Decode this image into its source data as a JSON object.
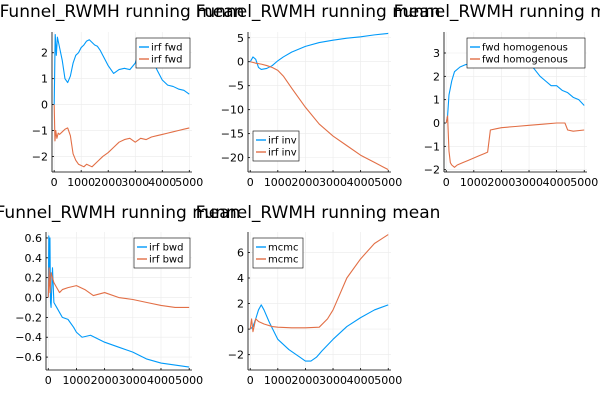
{
  "colors": {
    "series1": "#009AFA",
    "series2": "#E26F46",
    "grid": "#EBEBEB",
    "axis": "#000000"
  },
  "chart_data": [
    {
      "type": "line",
      "title": "Funnel_RWMH running mean",
      "xlabel": "",
      "ylabel": "",
      "xlim": [
        -80,
        5100
      ],
      "ylim": [
        -2.6,
        2.8
      ],
      "xticks": [
        0,
        1000,
        2000,
        3000,
        4000,
        5000
      ],
      "xtick_labels": [
        "0",
        "1000",
        "2000",
        "3000",
        "4000",
        "5000"
      ],
      "yticks": [
        -2,
        -1,
        0,
        1,
        2
      ],
      "ytick_labels": [
        "−2",
        "−1",
        "0",
        "1",
        "2"
      ],
      "grid": true,
      "legend_position": "top-right",
      "series": [
        {
          "name": "irf fwd",
          "color_key": "series1",
          "x": [
            1,
            40,
            80,
            120,
            200,
            300,
            400,
            500,
            600,
            700,
            800,
            900,
            1000,
            1100,
            1200,
            1300,
            1400,
            1500,
            1600,
            1700,
            1800,
            1900,
            2000,
            2200,
            2400,
            2600,
            2800,
            3000,
            3100,
            3200,
            3400,
            3600,
            3700,
            3800,
            4000,
            4200,
            4400,
            4600,
            4800,
            5000
          ],
          "y": [
            0,
            2.7,
            1.9,
            2.6,
            2.2,
            1.7,
            1.0,
            0.85,
            1.1,
            1.6,
            1.9,
            2.0,
            2.2,
            2.3,
            2.45,
            2.5,
            2.4,
            2.3,
            2.25,
            2.1,
            1.9,
            1.7,
            1.5,
            1.2,
            1.35,
            1.4,
            1.35,
            1.6,
            1.9,
            1.8,
            1.8,
            1.7,
            1.6,
            1.35,
            0.95,
            0.75,
            0.7,
            0.6,
            0.55,
            0.4
          ]
        },
        {
          "name": "irf fwd",
          "color_key": "series2",
          "x": [
            1,
            30,
            60,
            100,
            150,
            200,
            300,
            400,
            500,
            600,
            700,
            800,
            900,
            1000,
            1100,
            1200,
            1400,
            1600,
            1800,
            2000,
            2200,
            2400,
            2600,
            2800,
            3000,
            3200,
            3400,
            3600,
            3800,
            4000,
            4200,
            4400,
            4600,
            4800,
            5000
          ],
          "y": [
            0,
            -1.4,
            -1.0,
            -1.3,
            -1.1,
            -1.15,
            -1.05,
            -0.95,
            -0.9,
            -1.2,
            -1.9,
            -2.15,
            -2.3,
            -2.35,
            -2.4,
            -2.3,
            -2.4,
            -2.2,
            -2.0,
            -1.85,
            -1.65,
            -1.45,
            -1.35,
            -1.3,
            -1.45,
            -1.3,
            -1.35,
            -1.25,
            -1.2,
            -1.15,
            -1.1,
            -1.05,
            -1.0,
            -0.95,
            -0.9
          ]
        }
      ]
    },
    {
      "type": "line",
      "title": "Funnel_RWMH running mean",
      "xlabel": "",
      "ylabel": "",
      "xlim": [
        -80,
        5100
      ],
      "ylim": [
        -23,
        6.2
      ],
      "xticks": [
        0,
        1000,
        2000,
        3000,
        4000,
        5000
      ],
      "xtick_labels": [
        "0",
        "1000",
        "2000",
        "3000",
        "4000",
        "5000"
      ],
      "yticks": [
        -20,
        -15,
        -10,
        -5,
        0,
        5
      ],
      "ytick_labels": [
        "−20",
        "−15",
        "−10",
        "−5",
        "0",
        "5"
      ],
      "grid": true,
      "legend_position": "bottom-left",
      "series": [
        {
          "name": "irf inv",
          "color_key": "series1",
          "x": [
            1,
            100,
            200,
            300,
            400,
            600,
            800,
            1000,
            1200,
            1500,
            2000,
            2500,
            3000,
            3500,
            4000,
            4500,
            5000
          ],
          "y": [
            0,
            1.0,
            0.5,
            -1.2,
            -1.6,
            -1.4,
            -0.8,
            0.2,
            1.0,
            2.0,
            3.2,
            4.0,
            4.5,
            4.9,
            5.2,
            5.6,
            5.9
          ]
        },
        {
          "name": "irf inv",
          "color_key": "series2",
          "x": [
            1,
            200,
            400,
            600,
            800,
            1000,
            1200,
            1500,
            2000,
            2500,
            3000,
            3500,
            4000,
            4500,
            5000
          ],
          "y": [
            0,
            -0.3,
            -0.5,
            -0.8,
            -1.2,
            -1.8,
            -3.0,
            -5.5,
            -9.5,
            -13.0,
            -15.5,
            -17.5,
            -19.5,
            -21.0,
            -22.5
          ]
        }
      ]
    },
    {
      "type": "line",
      "title": "Funnel_RWMH running mean",
      "xlabel": "",
      "ylabel": "",
      "xlim": [
        -80,
        5100
      ],
      "ylim": [
        -2.1,
        3.9
      ],
      "xticks": [
        0,
        1000,
        2000,
        3000,
        4000,
        5000
      ],
      "xtick_labels": [
        "0",
        "1000",
        "2000",
        "3000",
        "4000",
        "5000"
      ],
      "yticks": [
        -2,
        -1,
        0,
        1,
        2,
        3
      ],
      "ytick_labels": [
        "−2",
        "−1",
        "0",
        "1",
        "2",
        "3"
      ],
      "grid": true,
      "legend_position": "top-right",
      "series": [
        {
          "name": "fwd homogenous",
          "color_key": "series1",
          "x": [
            1,
            50,
            100,
            200,
            300,
            500,
            700,
            900,
            1000,
            1200,
            1400,
            1600,
            1800,
            2000,
            2200,
            2400,
            2600,
            2800,
            3000,
            3200,
            3400,
            3600,
            3800,
            4000,
            4200,
            4400,
            4600,
            4800,
            5000
          ],
          "y": [
            0,
            0.3,
            1.2,
            1.8,
            2.2,
            2.4,
            2.5,
            2.55,
            2.7,
            3.2,
            3.3,
            3.25,
            3.2,
            3.0,
            3.1,
            3.3,
            3.6,
            3.55,
            2.6,
            2.3,
            2.0,
            1.8,
            1.6,
            1.6,
            1.4,
            1.3,
            1.1,
            1.0,
            0.75
          ]
        },
        {
          "name": "fwd homogenous",
          "color_key": "series2",
          "x": [
            1,
            50,
            100,
            150,
            200,
            300,
            400,
            600,
            800,
            1000,
            1200,
            1400,
            1500,
            1600,
            1800,
            2000,
            2500,
            3000,
            3500,
            4000,
            4300,
            4400,
            4600,
            5000
          ],
          "y": [
            0,
            0.3,
            -1.2,
            -1.7,
            -1.8,
            -1.9,
            -1.8,
            -1.7,
            -1.6,
            -1.5,
            -1.4,
            -1.3,
            -1.25,
            -0.3,
            -0.25,
            -0.2,
            -0.15,
            -0.1,
            -0.05,
            0.0,
            0.0,
            -0.3,
            -0.35,
            -0.3
          ]
        }
      ]
    },
    {
      "type": "line",
      "title": "Funnel_RWMH running mean",
      "xlabel": "",
      "ylabel": "",
      "xlim": [
        -80,
        5100
      ],
      "ylim": [
        -0.73,
        0.66
      ],
      "xticks": [
        0,
        1000,
        2000,
        3000,
        4000,
        5000
      ],
      "xtick_labels": [
        "0",
        "1000",
        "2000",
        "3000",
        "4000",
        "5000"
      ],
      "yticks": [
        -0.6,
        -0.4,
        -0.2,
        0.0,
        0.2,
        0.4,
        0.6
      ],
      "ytick_labels": [
        "−0.6",
        "−0.4",
        "−0.2",
        "0.0",
        "0.2",
        "0.4",
        "0.6"
      ],
      "grid": true,
      "legend_position": "top-right",
      "series": [
        {
          "name": "irf bwd",
          "color_key": "series1",
          "x": [
            1,
            20,
            40,
            60,
            80,
            100,
            150,
            200,
            300,
            400,
            500,
            700,
            900,
            1000,
            1200,
            1500,
            2000,
            2500,
            3000,
            3500,
            4000,
            4500,
            5000
          ],
          "y": [
            0,
            0.62,
            0.3,
            0.6,
            -0.05,
            -0.1,
            0.3,
            -0.05,
            -0.1,
            -0.15,
            -0.2,
            -0.22,
            -0.3,
            -0.35,
            -0.4,
            -0.38,
            -0.45,
            -0.5,
            -0.55,
            -0.62,
            -0.66,
            -0.68,
            -0.7
          ]
        },
        {
          "name": "irf bwd",
          "color_key": "series2",
          "x": [
            1,
            30,
            60,
            100,
            150,
            200,
            300,
            400,
            500,
            700,
            1000,
            1300,
            1600,
            2000,
            2500,
            3000,
            3500,
            4000,
            4500,
            5000
          ],
          "y": [
            0,
            0.3,
            0.05,
            0.25,
            0.2,
            0.15,
            0.1,
            0.05,
            0.08,
            0.1,
            0.12,
            0.08,
            0.02,
            0.05,
            0.0,
            -0.02,
            -0.05,
            -0.08,
            -0.1,
            -0.1
          ]
        }
      ]
    },
    {
      "type": "line",
      "title": "Funnel_RWMH running mean",
      "xlabel": "",
      "ylabel": "",
      "xlim": [
        -80,
        5100
      ],
      "ylim": [
        -3.2,
        7.6
      ],
      "xticks": [
        0,
        1000,
        2000,
        3000,
        4000,
        5000
      ],
      "xtick_labels": [
        "0",
        "1000",
        "2000",
        "3000",
        "4000",
        "5000"
      ],
      "yticks": [
        -2,
        0,
        2,
        4,
        6
      ],
      "ytick_labels": [
        "−2",
        "0",
        "2",
        "4",
        "6"
      ],
      "grid": true,
      "legend_position": "top-left",
      "series": [
        {
          "name": "mcmc",
          "color_key": "series1",
          "x": [
            1,
            100,
            200,
            300,
            400,
            500,
            700,
            1000,
            1400,
            1800,
            2000,
            2200,
            2400,
            2600,
            3000,
            3500,
            4000,
            4500,
            5000
          ],
          "y": [
            0,
            0.2,
            0.8,
            1.5,
            1.9,
            1.5,
            0.5,
            -0.8,
            -1.6,
            -2.2,
            -2.5,
            -2.5,
            -2.2,
            -1.7,
            -0.8,
            0.2,
            0.9,
            1.5,
            1.9
          ]
        },
        {
          "name": "mcmc",
          "color_key": "series2",
          "x": [
            1,
            50,
            100,
            200,
            300,
            500,
            800,
            1000,
            1500,
            2000,
            2500,
            2800,
            3000,
            3200,
            3500,
            4000,
            4500,
            5000
          ],
          "y": [
            0,
            0.8,
            -0.2,
            0.8,
            0.6,
            0.4,
            0.2,
            0.15,
            0.1,
            0.1,
            0.15,
            0.8,
            1.5,
            2.5,
            4.0,
            5.5,
            6.7,
            7.4
          ]
        }
      ]
    }
  ]
}
